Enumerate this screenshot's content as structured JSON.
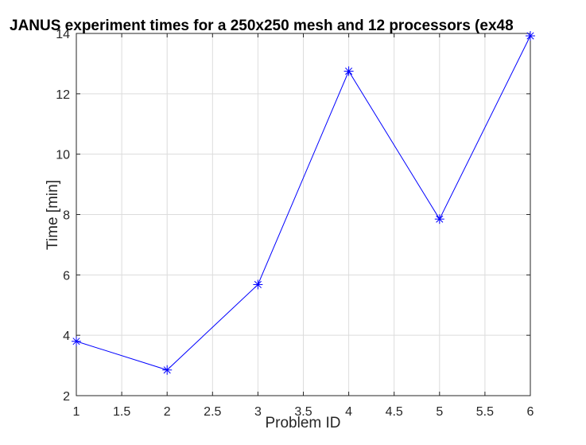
{
  "chart_data": {
    "type": "line",
    "title": "JANUS experiment times for a 250x250 mesh and 12 processors (ex48",
    "xlabel": "Problem ID",
    "ylabel": "Time [min]",
    "xlim": [
      1,
      6
    ],
    "ylim": [
      2,
      14
    ],
    "xticks": [
      "1",
      "1.5",
      "2",
      "2.5",
      "3",
      "3.5",
      "4",
      "4.5",
      "5",
      "5.5",
      "6"
    ],
    "yticks": [
      "2",
      "4",
      "6",
      "8",
      "10",
      "12",
      "14"
    ],
    "grid": true,
    "legend": "none",
    "series": [
      {
        "x": [
          1,
          2,
          3,
          4,
          5,
          6
        ],
        "values": [
          3.8,
          2.85,
          5.68,
          12.75,
          7.85,
          13.92
        ],
        "color": "#0000ff",
        "marker": "asterisk"
      }
    ]
  }
}
